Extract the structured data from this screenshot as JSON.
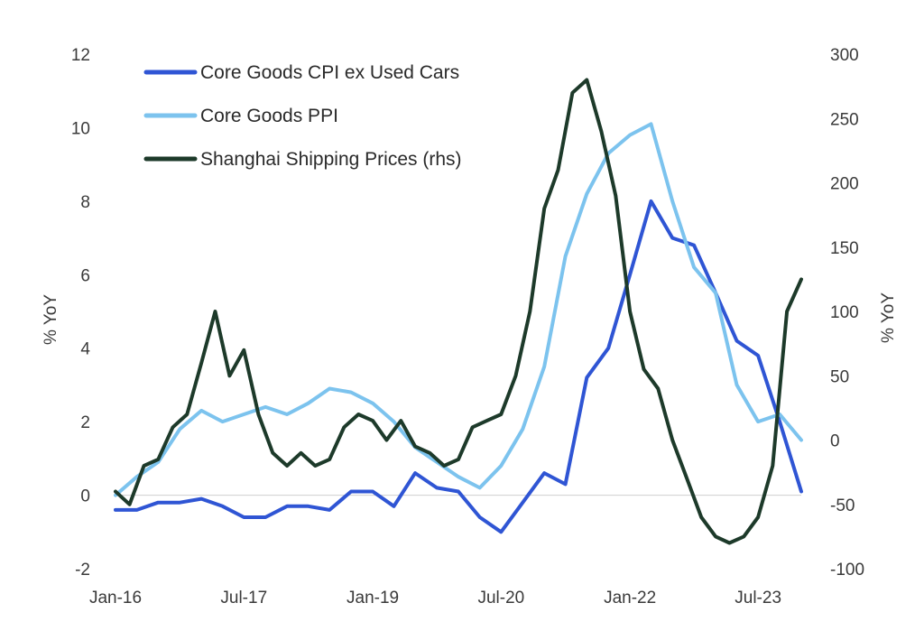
{
  "chart_data": {
    "type": "line",
    "title": "",
    "ylabel_left": "% YoY",
    "ylabel_right": "% YoY",
    "ylim_left": [
      -2,
      12
    ],
    "ylim_right": [
      -100,
      300
    ],
    "yticks_left": [
      "12",
      "10",
      "8",
      "6",
      "4",
      "2",
      "0",
      "-2"
    ],
    "yticks_right": [
      "300",
      "250",
      "200",
      "150",
      "100",
      "50",
      "0",
      "-50",
      "-100"
    ],
    "xticks": [
      "Jan-16",
      "Jul-17",
      "Jan-19",
      "Jul-20",
      "Jan-22",
      "Jul-23"
    ],
    "legend_position": "top-left",
    "grid": false,
    "series": [
      {
        "name": "Core Goods CPI ex Used Cars",
        "axis": "left",
        "color": "#2f55d4",
        "x": [
          "2016-01",
          "2016-04",
          "2016-07",
          "2016-10",
          "2017-01",
          "2017-04",
          "2017-07",
          "2017-10",
          "2018-01",
          "2018-04",
          "2018-07",
          "2018-10",
          "2019-01",
          "2019-04",
          "2019-07",
          "2019-10",
          "2020-01",
          "2020-04",
          "2020-07",
          "2020-10",
          "2021-01",
          "2021-04",
          "2021-07",
          "2021-10",
          "2022-01",
          "2022-04",
          "2022-07",
          "2022-10",
          "2023-01",
          "2023-04",
          "2023-07",
          "2023-10",
          "2024-01"
        ],
        "y": [
          -0.4,
          -0.4,
          -0.2,
          -0.2,
          -0.1,
          -0.3,
          -0.6,
          -0.6,
          -0.3,
          -0.3,
          -0.4,
          0.1,
          0.1,
          -0.3,
          0.6,
          0.2,
          0.1,
          -0.6,
          -1.0,
          -0.2,
          0.6,
          0.3,
          3.2,
          4.0,
          6.0,
          8.0,
          7.0,
          6.8,
          5.5,
          4.2,
          3.8,
          2.0,
          0.1
        ]
      },
      {
        "name": "Core Goods PPI",
        "axis": "left",
        "color": "#7cc3ee",
        "x": [
          "2016-01",
          "2016-04",
          "2016-07",
          "2016-10",
          "2017-01",
          "2017-04",
          "2017-07",
          "2017-10",
          "2018-01",
          "2018-04",
          "2018-07",
          "2018-10",
          "2019-01",
          "2019-04",
          "2019-07",
          "2019-10",
          "2020-01",
          "2020-04",
          "2020-07",
          "2020-10",
          "2021-01",
          "2021-04",
          "2021-07",
          "2021-10",
          "2022-01",
          "2022-04",
          "2022-07",
          "2022-10",
          "2023-01",
          "2023-04",
          "2023-07",
          "2023-10",
          "2024-01"
        ],
        "y": [
          0.0,
          0.5,
          0.9,
          1.8,
          2.3,
          2.0,
          2.2,
          2.4,
          2.2,
          2.5,
          2.9,
          2.8,
          2.5,
          2.0,
          1.3,
          0.9,
          0.5,
          0.2,
          0.8,
          1.8,
          3.5,
          6.5,
          8.2,
          9.3,
          9.8,
          10.1,
          8.0,
          6.2,
          5.5,
          3.0,
          2.0,
          2.2,
          1.5
        ]
      },
      {
        "name": "Shanghai Shipping Prices (rhs)",
        "axis": "right",
        "color": "#1d3a2a",
        "x": [
          "2016-01",
          "2016-03",
          "2016-05",
          "2016-07",
          "2016-09",
          "2016-11",
          "2017-01",
          "2017-03",
          "2017-05",
          "2017-07",
          "2017-09",
          "2017-11",
          "2018-01",
          "2018-03",
          "2018-05",
          "2018-07",
          "2018-09",
          "2018-11",
          "2019-01",
          "2019-03",
          "2019-05",
          "2019-07",
          "2019-09",
          "2019-11",
          "2020-01",
          "2020-03",
          "2020-05",
          "2020-07",
          "2020-09",
          "2020-11",
          "2021-01",
          "2021-03",
          "2021-05",
          "2021-07",
          "2021-09",
          "2021-11",
          "2022-01",
          "2022-03",
          "2022-05",
          "2022-07",
          "2022-09",
          "2022-11",
          "2023-01",
          "2023-03",
          "2023-05",
          "2023-07",
          "2023-09",
          "2023-11",
          "2024-01"
        ],
        "y": [
          -40,
          -50,
          -20,
          -15,
          10,
          20,
          60,
          100,
          50,
          70,
          20,
          -10,
          -20,
          -10,
          -20,
          -15,
          10,
          20,
          15,
          0,
          15,
          -5,
          -10,
          -20,
          -15,
          10,
          15,
          20,
          50,
          100,
          180,
          210,
          270,
          280,
          240,
          190,
          100,
          55,
          40,
          0,
          -30,
          -60,
          -75,
          -80,
          -75,
          -60,
          -20,
          100,
          125
        ]
      }
    ]
  }
}
